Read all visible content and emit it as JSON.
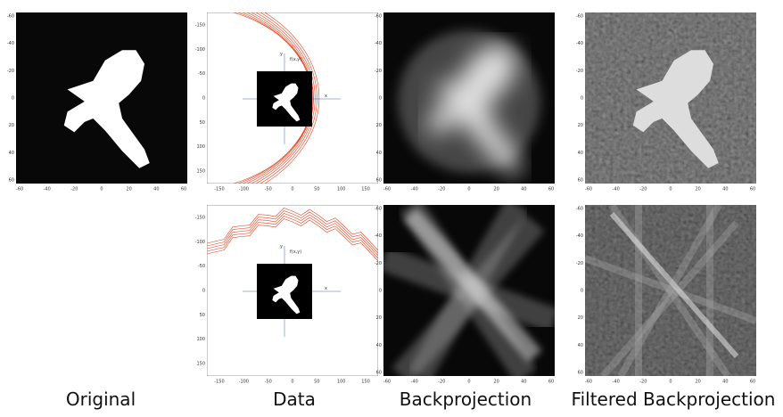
{
  "captions": [
    "Original",
    "Data",
    "Backprojection",
    "Filtered Backprojection"
  ],
  "panels": [
    {
      "xticks": [
        -60,
        -40,
        -20,
        0,
        20,
        40,
        60
      ],
      "yticks": [
        -60,
        -40,
        -20,
        0,
        20,
        40,
        60
      ]
    },
    {
      "xticks": [
        -150,
        -100,
        -50,
        0,
        50,
        100,
        150
      ],
      "yticks": [
        -150,
        -100,
        -50,
        0,
        50,
        100,
        150
      ],
      "inset_labels": [
        "y",
        "x",
        "f(x,y)"
      ]
    },
    {
      "xticks": [
        -60,
        -40,
        -20,
        0,
        20,
        40,
        60
      ],
      "yticks": [
        -60,
        -40,
        -20,
        0,
        20,
        40,
        60
      ]
    },
    {
      "xticks": [
        -60,
        -40,
        -20,
        0,
        20,
        40,
        60
      ],
      "yticks": [
        -60,
        -40,
        -20,
        0,
        20,
        40,
        60
      ]
    },
    {
      "xticks": [
        -150,
        -100,
        -50,
        0,
        50,
        100,
        150
      ],
      "yticks": [
        -150,
        -100,
        -50,
        0,
        50,
        100,
        150
      ],
      "inset_labels": [
        "y",
        "x",
        "f(x,y)"
      ]
    },
    {
      "xticks": [
        -60,
        -40,
        -20,
        0,
        20,
        40,
        60
      ],
      "yticks": [
        -60,
        -40,
        -20,
        0,
        20,
        40,
        60
      ]
    },
    {
      "xticks": [
        -60,
        -40,
        -20,
        0,
        20,
        40,
        60
      ],
      "yticks": [
        -60,
        -40,
        -20,
        0,
        20,
        40,
        60
      ]
    }
  ]
}
